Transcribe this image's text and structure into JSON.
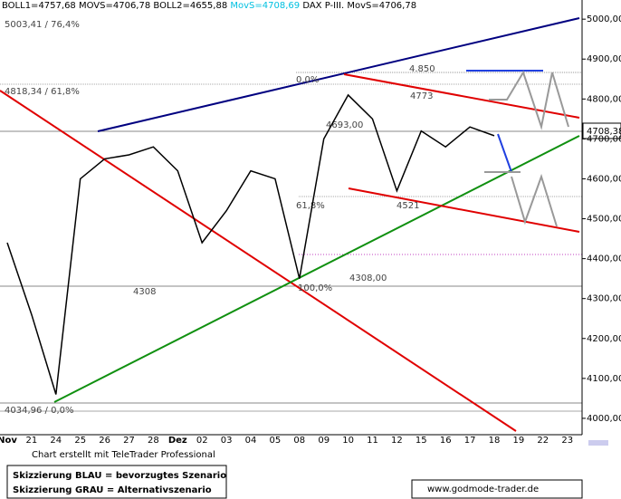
{
  "chart_data": {
    "type": "line",
    "header": [
      "BOLL1=4757,68 MOVS=4706,78 BOLL2=4655,88",
      "MovS=4708,69",
      "DAX P-III. MovS=4706,78"
    ],
    "categories": [
      "Nov",
      "21",
      "24",
      "25",
      "26",
      "27",
      "28",
      "Dez",
      "02",
      "03",
      "04",
      "05",
      "08",
      "09",
      "10",
      "11",
      "12",
      "15",
      "16",
      "17",
      "18",
      "19",
      "22",
      "23"
    ],
    "values": [
      4440,
      4260,
      4060,
      4600,
      4650,
      4660,
      4680,
      4620,
      4440,
      4520,
      4620,
      4600,
      4350,
      4700,
      4810,
      4750,
      4570,
      4720,
      4680,
      4730,
      4708,
      null,
      null,
      null
    ],
    "color": "#000000",
    "ylim": [
      3959,
      5048
    ],
    "yticks": [
      {
        "value": 4000,
        "label": "4000,00"
      },
      {
        "value": 4100,
        "label": "4100,00"
      },
      {
        "value": 4200,
        "label": "4200,00"
      },
      {
        "value": 4300,
        "label": "4300,00"
      },
      {
        "value": 4400,
        "label": "4400,00"
      },
      {
        "value": 4500,
        "label": "4500,00"
      },
      {
        "value": 4600,
        "label": "4600,00"
      },
      {
        "value": 4700,
        "label": "4700,00"
      },
      {
        "value": 4800,
        "label": "4800,00"
      },
      {
        "value": 4900,
        "label": "4900,00"
      },
      {
        "value": 5000,
        "label": "5000,00"
      }
    ],
    "last_price_label": "4708,38",
    "annotations": [
      "5003,41 / 76,4%",
      "4818,34 / 61,8%",
      "4034,96 / 0,0%",
      "0,0%",
      "4.850",
      "4773",
      "4693,00",
      "61,8%",
      "4521",
      "4308,00",
      "100,0%",
      "4308"
    ],
    "credit": "Chart erstellt mit TeleTrader Professional",
    "legend_notes": [
      "Skizzierung BLAU = bevorzugtes Szenario",
      "Skizzierung GRAU = Alternativszenario"
    ],
    "website": "www.godmode-trader.de"
  }
}
